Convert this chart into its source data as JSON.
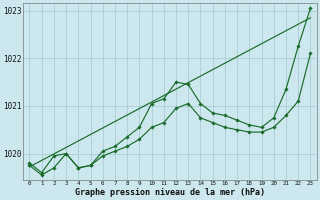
{
  "xlabel": "Graphe pression niveau de la mer (hPa)",
  "bg_color": "#cce8ee",
  "grid_color": "#aacdd5",
  "line_color": "#1a6b2a",
  "xlim": [
    -0.5,
    23.5
  ],
  "ylim": [
    1019.45,
    1023.15
  ],
  "yticks": [
    1020,
    1021,
    1022,
    1023
  ],
  "xtick_labels": [
    "0",
    "1",
    "2",
    "3",
    "4",
    "5",
    "6",
    "7",
    "8",
    "9",
    "10",
    "11",
    "12",
    "13",
    "14",
    "15",
    "16",
    "17",
    "18",
    "19",
    "20",
    "21",
    "22",
    "23"
  ],
  "line1_x": [
    0,
    1,
    2,
    3,
    4,
    5,
    6,
    7,
    8,
    9,
    10,
    11,
    12,
    13,
    14,
    15,
    16,
    17,
    18,
    19,
    20,
    21,
    22,
    23
  ],
  "line1_y": [
    1019.8,
    1019.6,
    1019.95,
    1020.0,
    1019.7,
    1019.75,
    1020.05,
    1020.15,
    1020.35,
    1020.55,
    1021.05,
    1021.15,
    1021.5,
    1021.45,
    1021.05,
    1020.85,
    1020.8,
    1020.7,
    1020.6,
    1020.55,
    1020.75,
    1021.35,
    1022.25,
    1023.05
  ],
  "line2_x": [
    0,
    1,
    2,
    3,
    4,
    5,
    6,
    7,
    8,
    9,
    10,
    11,
    12,
    13,
    14,
    15,
    16,
    17,
    18,
    19,
    20,
    21,
    22,
    23
  ],
  "line2_y": [
    1019.75,
    1019.55,
    1019.7,
    1020.0,
    1019.7,
    1019.75,
    1019.95,
    1020.05,
    1020.15,
    1020.3,
    1020.55,
    1020.65,
    1020.95,
    1021.05,
    1020.75,
    1020.65,
    1020.55,
    1020.5,
    1020.45,
    1020.45,
    1020.55,
    1020.8,
    1021.1,
    1022.1
  ],
  "line3_x": [
    0,
    23
  ],
  "line3_y": [
    1019.72,
    1022.85
  ]
}
